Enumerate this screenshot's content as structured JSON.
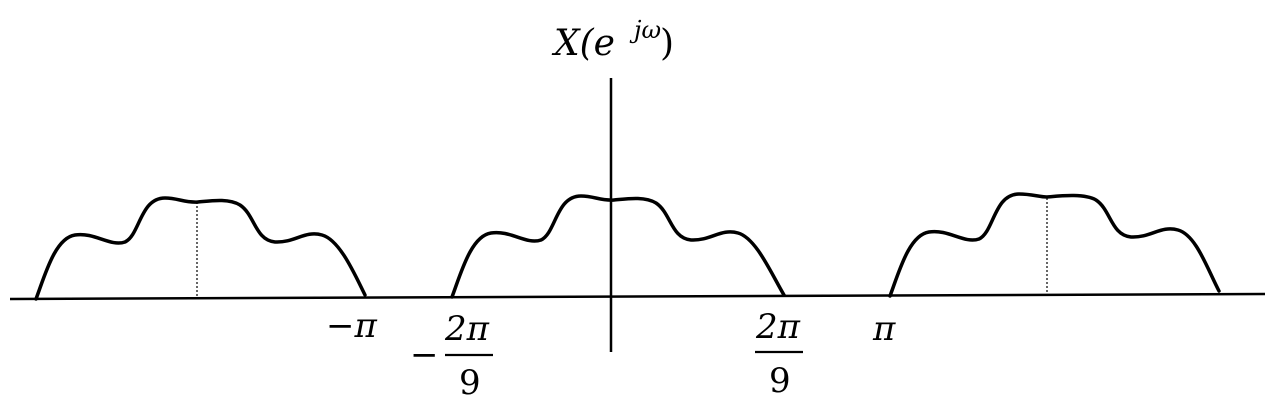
{
  "diagram": {
    "y_axis_label": {
      "base": "X(e",
      "exponent": "jω",
      "close": ")"
    },
    "tick_labels": {
      "neg_pi": "−π",
      "pi": "π",
      "neg_two_pi_over_nine": {
        "sign": "−",
        "numerator": "2π",
        "denominator": "9"
      },
      "two_pi_over_nine": {
        "numerator": "2π",
        "denominator": "9"
      }
    },
    "copies": [
      {
        "name": "left-copy",
        "center_marker": "dotted"
      },
      {
        "name": "center-copy",
        "center_marker": "axis"
      },
      {
        "name": "right-copy",
        "center_marker": "dotted"
      }
    ]
  }
}
